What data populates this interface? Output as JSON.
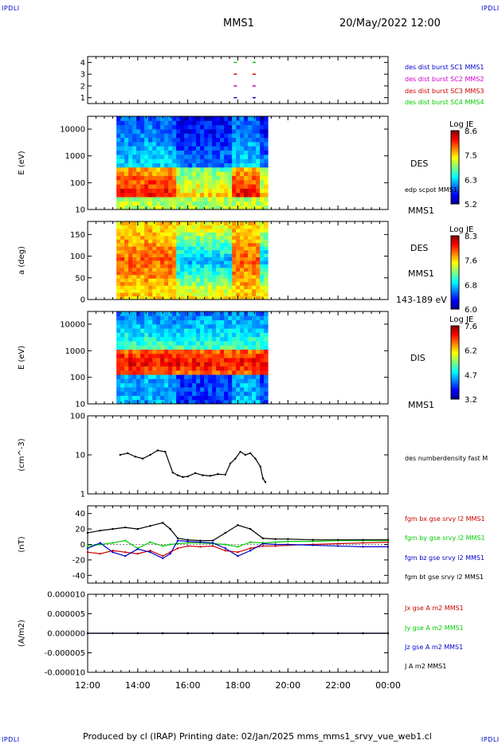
{
  "header": {
    "corner_left": "IPDLI",
    "corner_right": "IPDLI",
    "spacecraft": "MMS1",
    "datetime": "20/May/2022 12:00"
  },
  "footer": {
    "text": "Produced by cl (IRAP)   Printing date: 02/Jan/2025   mms_mms1_srvy_vue_web1.cl",
    "corner_left": "IPDLI",
    "corner_right": "IPDLI"
  },
  "colors": {
    "red": "#cc0000",
    "green": "#00cc00",
    "blue": "#0000cc",
    "magenta": "#cc00cc",
    "black": "#000000"
  },
  "x_axis": {
    "ticks": [
      "12:00",
      "14:00",
      "16:00",
      "18:00",
      "20:00",
      "22:00",
      "00:00"
    ],
    "range_hours": [
      12,
      24
    ]
  },
  "chart_data": [
    {
      "type": "scatter",
      "name": "burst-availability",
      "yticks": [
        "1",
        "2",
        "3",
        "4"
      ],
      "ylim": [
        0.5,
        4.5
      ],
      "legend": [
        {
          "label": "des dist burst SC1 MMS1",
          "color": "#0000cc"
        },
        {
          "label": "des dist burst SC2 MMS2",
          "color": "#cc00cc"
        },
        {
          "label": "des dist burst SC3 MMS3",
          "color": "#cc0000"
        },
        {
          "label": "des dist burst SC4 MMS4",
          "color": "#00cc00"
        }
      ],
      "points": [
        {
          "x": 17.9,
          "y": 1,
          "c": "#0000cc"
        },
        {
          "x": 18.65,
          "y": 1,
          "c": "#0000cc"
        },
        {
          "x": 17.9,
          "y": 2,
          "c": "#cc00cc"
        },
        {
          "x": 18.65,
          "y": 2,
          "c": "#cc00cc"
        },
        {
          "x": 17.9,
          "y": 3,
          "c": "#cc0000"
        },
        {
          "x": 18.65,
          "y": 3,
          "c": "#cc0000"
        },
        {
          "x": 17.9,
          "y": 4,
          "c": "#00cc00"
        },
        {
          "x": 18.65,
          "y": 4,
          "c": "#00cc00"
        }
      ]
    },
    {
      "type": "heatmap",
      "name": "des-energy",
      "ylabel": "E (eV)",
      "yticks": [
        "10",
        "100",
        "1000",
        "10000"
      ],
      "log": true,
      "ylim": [
        10,
        30000
      ],
      "time_range": [
        13.15,
        19.15
      ],
      "right_labels": [
        "DES",
        "edp scpot MMS1",
        "MMS1"
      ],
      "colorbar": {
        "title": "Log JE",
        "ticks": [
          "8.6",
          "7.5",
          "6.3",
          "5.2"
        ]
      }
    },
    {
      "type": "heatmap",
      "name": "des-pitch-angle",
      "ylabel": "a (deg)",
      "yticks": [
        "0",
        "50",
        "100",
        "150"
      ],
      "ylim": [
        0,
        180
      ],
      "time_range": [
        13.15,
        19.15
      ],
      "right_labels": [
        "DES",
        "MMS1",
        "143-189 eV"
      ],
      "colorbar": {
        "title": "Log JE",
        "ticks": [
          "8.3",
          "7.6",
          "6.8",
          "6.0"
        ]
      }
    },
    {
      "type": "heatmap",
      "name": "dis-energy",
      "ylabel": "E (eV)",
      "yticks": [
        "10",
        "100",
        "1000",
        "10000"
      ],
      "log": true,
      "ylim": [
        10,
        30000
      ],
      "time_range": [
        13.15,
        19.15
      ],
      "right_labels": [
        "DIS",
        "MMS1"
      ],
      "colorbar": {
        "title": "Log JE",
        "ticks": [
          "7.6",
          "6.2",
          "4.7",
          "3.2"
        ]
      }
    },
    {
      "type": "line",
      "name": "density",
      "ylabel": "(cm^-3)",
      "yticks": [
        "1",
        "10",
        "100"
      ],
      "log": true,
      "ylim": [
        1,
        100
      ],
      "legend": [
        {
          "label": "des numberdensity fast M",
          "color": "#000000"
        }
      ],
      "series": [
        {
          "name": "des numberdensity fast M",
          "color": "#000000",
          "x": [
            13.3,
            13.6,
            13.9,
            14.2,
            14.5,
            14.8,
            15.1,
            15.4,
            15.6,
            15.8,
            16.0,
            16.3,
            16.6,
            16.9,
            17.2,
            17.5,
            17.7,
            17.9,
            18.1,
            18.3,
            18.5,
            18.7,
            18.9,
            19.0,
            19.1
          ],
          "y": [
            10,
            11,
            9,
            8,
            10,
            13,
            12,
            3.5,
            3.0,
            2.7,
            2.8,
            3.4,
            3.0,
            2.9,
            3.2,
            3.1,
            6,
            8,
            12,
            10,
            11,
            8,
            5,
            2.5,
            2
          ]
        }
      ]
    },
    {
      "type": "line",
      "name": "magnetic-field",
      "ylabel": "(nT)",
      "yticks": [
        "-40",
        "-20",
        "0",
        "20",
        "40"
      ],
      "ylim": [
        -50,
        50
      ],
      "legend": [
        {
          "label": "fgm bx gse srvy l2 MMS1",
          "color": "#cc0000"
        },
        {
          "label": "fgm by gse srvy l2 MMS1",
          "color": "#00cc00"
        },
        {
          "label": "fgm bz gse srvy l2 MMS1",
          "color": "#0000cc"
        },
        {
          "label": "fgm bt gse srvy l2 MMS1",
          "color": "#000000"
        }
      ],
      "series": [
        {
          "name": "fgm bx gse srvy l2 MMS1",
          "color": "#cc0000",
          "x": [
            12.0,
            12.5,
            13.0,
            13.5,
            14.0,
            14.5,
            15.0,
            15.3,
            15.6,
            16.0,
            16.5,
            17.0,
            17.5,
            18.0,
            18.5,
            19.0,
            19.5,
            20.0,
            21.0,
            22.0,
            23.0,
            24.0
          ],
          "y": [
            -10,
            -12,
            -8,
            -10,
            -12,
            -8,
            -15,
            -10,
            -5,
            -2,
            -3,
            -2,
            -8,
            -10,
            -5,
            -2,
            -2,
            -1,
            0,
            1,
            2,
            3
          ]
        },
        {
          "name": "fgm by gse srvy l2 MMS1",
          "color": "#00cc00",
          "x": [
            12.0,
            12.5,
            13.0,
            13.5,
            14.0,
            14.5,
            15.0,
            15.3,
            15.6,
            16.0,
            16.5,
            17.0,
            17.5,
            18.0,
            18.5,
            19.0,
            19.5,
            20.0,
            21.0,
            22.0,
            23.0,
            24.0
          ],
          "y": [
            -2,
            0,
            2,
            5,
            -5,
            3,
            -2,
            0,
            1,
            2,
            2,
            1,
            0,
            -3,
            3,
            2,
            3,
            4,
            4,
            5,
            5,
            5
          ]
        },
        {
          "name": "fgm bz gse srvy l2 MMS1",
          "color": "#0000cc",
          "x": [
            12.0,
            12.5,
            13.0,
            13.5,
            14.0,
            14.5,
            15.0,
            15.3,
            15.6,
            16.0,
            16.5,
            17.0,
            17.5,
            18.0,
            18.5,
            19.0,
            19.5,
            20.0,
            21.0,
            22.0,
            23.0,
            24.0
          ],
          "y": [
            -5,
            2,
            -10,
            -15,
            -6,
            -10,
            -18,
            -12,
            5,
            4,
            3,
            2,
            -5,
            -15,
            -8,
            1,
            0,
            0,
            -1,
            -2,
            -3,
            -3
          ]
        },
        {
          "name": "fgm bt gse srvy l2 MMS1",
          "color": "#000000",
          "x": [
            12.0,
            12.5,
            13.0,
            13.5,
            14.0,
            14.5,
            15.0,
            15.3,
            15.6,
            16.0,
            16.5,
            17.0,
            17.5,
            18.0,
            18.5,
            19.0,
            19.5,
            20.0,
            21.0,
            22.0,
            23.0,
            24.0
          ],
          "y": [
            15,
            18,
            20,
            22,
            20,
            24,
            28,
            20,
            8,
            6,
            5,
            5,
            15,
            25,
            20,
            8,
            7,
            7,
            6,
            6,
            6,
            6
          ]
        }
      ]
    },
    {
      "type": "line",
      "name": "current-density",
      "ylabel": "(A/m2)",
      "yticks": [
        "-0.000010",
        "-0.000005",
        "0.000000",
        "0.000005",
        "0.000010"
      ],
      "ylim": [
        -1e-05,
        1e-05
      ],
      "legend": [
        {
          "label": "Jx gse A m2 MMS1",
          "color": "#cc0000"
        },
        {
          "label": "Jy gse A m2 MMS1",
          "color": "#00cc00"
        },
        {
          "label": "Jz gse A m2 MMS1",
          "color": "#0000cc"
        },
        {
          "label": "J A m2 MMS1",
          "color": "#000000"
        }
      ],
      "series": [
        {
          "name": "Jz gse A m2 MMS1",
          "color": "#0000cc",
          "x": [
            12,
            13,
            14,
            15,
            16,
            17,
            18,
            19,
            20,
            21,
            22,
            23,
            24
          ],
          "y": [
            0,
            0,
            0,
            0,
            0,
            0,
            0,
            0,
            0,
            0,
            0,
            0,
            0
          ]
        },
        {
          "name": "J A m2 MMS1",
          "color": "#000000",
          "x": [
            12,
            13,
            14,
            15,
            16,
            17,
            18,
            19,
            20,
            21,
            22,
            23,
            24
          ],
          "y": [
            0,
            0,
            0,
            0,
            0,
            0,
            0,
            0,
            0,
            0,
            0,
            0,
            0
          ]
        }
      ]
    }
  ]
}
